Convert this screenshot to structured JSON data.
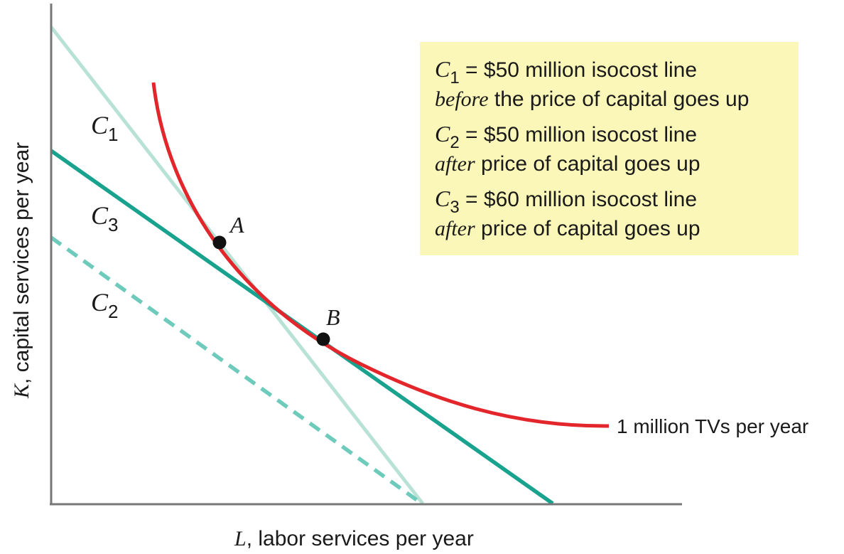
{
  "axes": {
    "x_var": "L",
    "x_rest": ", labor services per year",
    "y_var": "K",
    "y_rest": ", capital services per year"
  },
  "lines": {
    "c1": {
      "main": "C",
      "sub": "1",
      "color": "#b9e2d6"
    },
    "c2": {
      "main": "C",
      "sub": "2",
      "color": "#6ecbbb"
    },
    "c3": {
      "main": "C",
      "sub": "3",
      "color": "#19a38f"
    }
  },
  "isoquant": {
    "label": "1 million TVs per year",
    "color": "#e3262b"
  },
  "points": {
    "a": {
      "label": "A"
    },
    "b": {
      "label": "B"
    }
  },
  "legend": {
    "background": "#fbf7b8",
    "line1": {
      "main": "C",
      "sub": "1",
      "text": " = $50 million isocost line"
    },
    "line2": {
      "em": "before",
      "text": " the price of capital goes up"
    },
    "line3": {
      "main": "C",
      "sub": "2",
      "text": " = $50 million isocost line"
    },
    "line4": {
      "em": "after",
      "text": " price of capital goes up"
    },
    "line5": {
      "main": "C",
      "sub": "3",
      "text": " = $60 million isocost line"
    },
    "line6": {
      "em": "after",
      "text": " price of capital goes up"
    }
  }
}
